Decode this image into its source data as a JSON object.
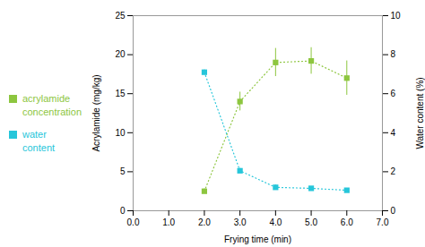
{
  "chart_data": {
    "type": "line",
    "xlabel": "Frying time (min)",
    "ylabel": "Acrylamide (mg/kg)",
    "y2label": "Water content (%)",
    "xlim": [
      0,
      7
    ],
    "ylim": [
      0,
      25
    ],
    "y2lim": [
      0,
      10
    ],
    "xticks": [
      0,
      1,
      2,
      3,
      4,
      5,
      6,
      7
    ],
    "yticks": [
      0,
      5,
      10,
      15,
      20,
      25
    ],
    "y2ticks": [
      0,
      2,
      4,
      6,
      8,
      10
    ],
    "grid": false,
    "legend": "left",
    "x": [
      2,
      3,
      4,
      5,
      6
    ],
    "series": [
      {
        "name": "acrylamide concentration",
        "color": "#8dc63f",
        "marker": "square",
        "line_style": "dotted",
        "values": [
          2.5,
          14.0,
          19.0,
          19.2,
          17.0
        ],
        "yerr": [
          0.3,
          1.2,
          1.8,
          1.7,
          2.2
        ]
      },
      {
        "name": "water content",
        "color": "#26c6da",
        "marker": "square",
        "line_style": "dotted",
        "axis": "y2",
        "values": [
          7.1,
          2.05,
          1.2,
          1.15,
          1.05
        ],
        "yerr": [
          0.12,
          0.12,
          0.12,
          0.08,
          0.08
        ]
      }
    ]
  }
}
